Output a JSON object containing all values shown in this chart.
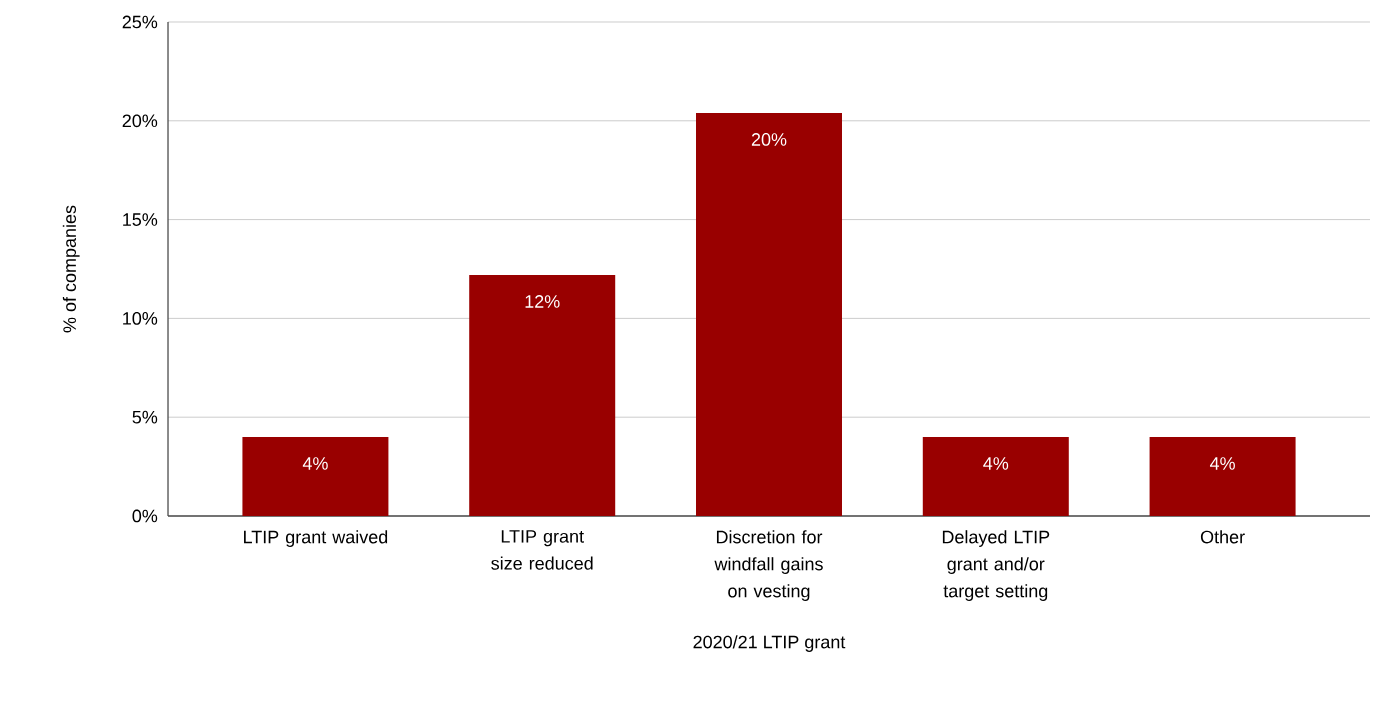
{
  "chart_data": {
    "type": "bar",
    "xlabel": "2020/21 LTIP grant",
    "ylabel": "% of companies",
    "categories": [
      "LTIP grant waived",
      "LTIP grant size reduced",
      "Discretion for windfall gains on vesting",
      "Delayed LTIP grant and/or target setting",
      "Other"
    ],
    "values": [
      4,
      12.2,
      20.4,
      4,
      4
    ],
    "value_labels": [
      "4%",
      "12%",
      "20%",
      "4%",
      "4%"
    ],
    "color": "#990000",
    "ylim": [
      0,
      25
    ],
    "yticks": [
      {
        "value": 0,
        "label": "0%"
      },
      {
        "value": 5,
        "label": "5%"
      },
      {
        "value": 10,
        "label": "10%"
      },
      {
        "value": 15,
        "label": "15%"
      },
      {
        "value": 20,
        "label": "20%"
      },
      {
        "value": 25,
        "label": "25%"
      }
    ],
    "grid": "y",
    "legend": false
  }
}
